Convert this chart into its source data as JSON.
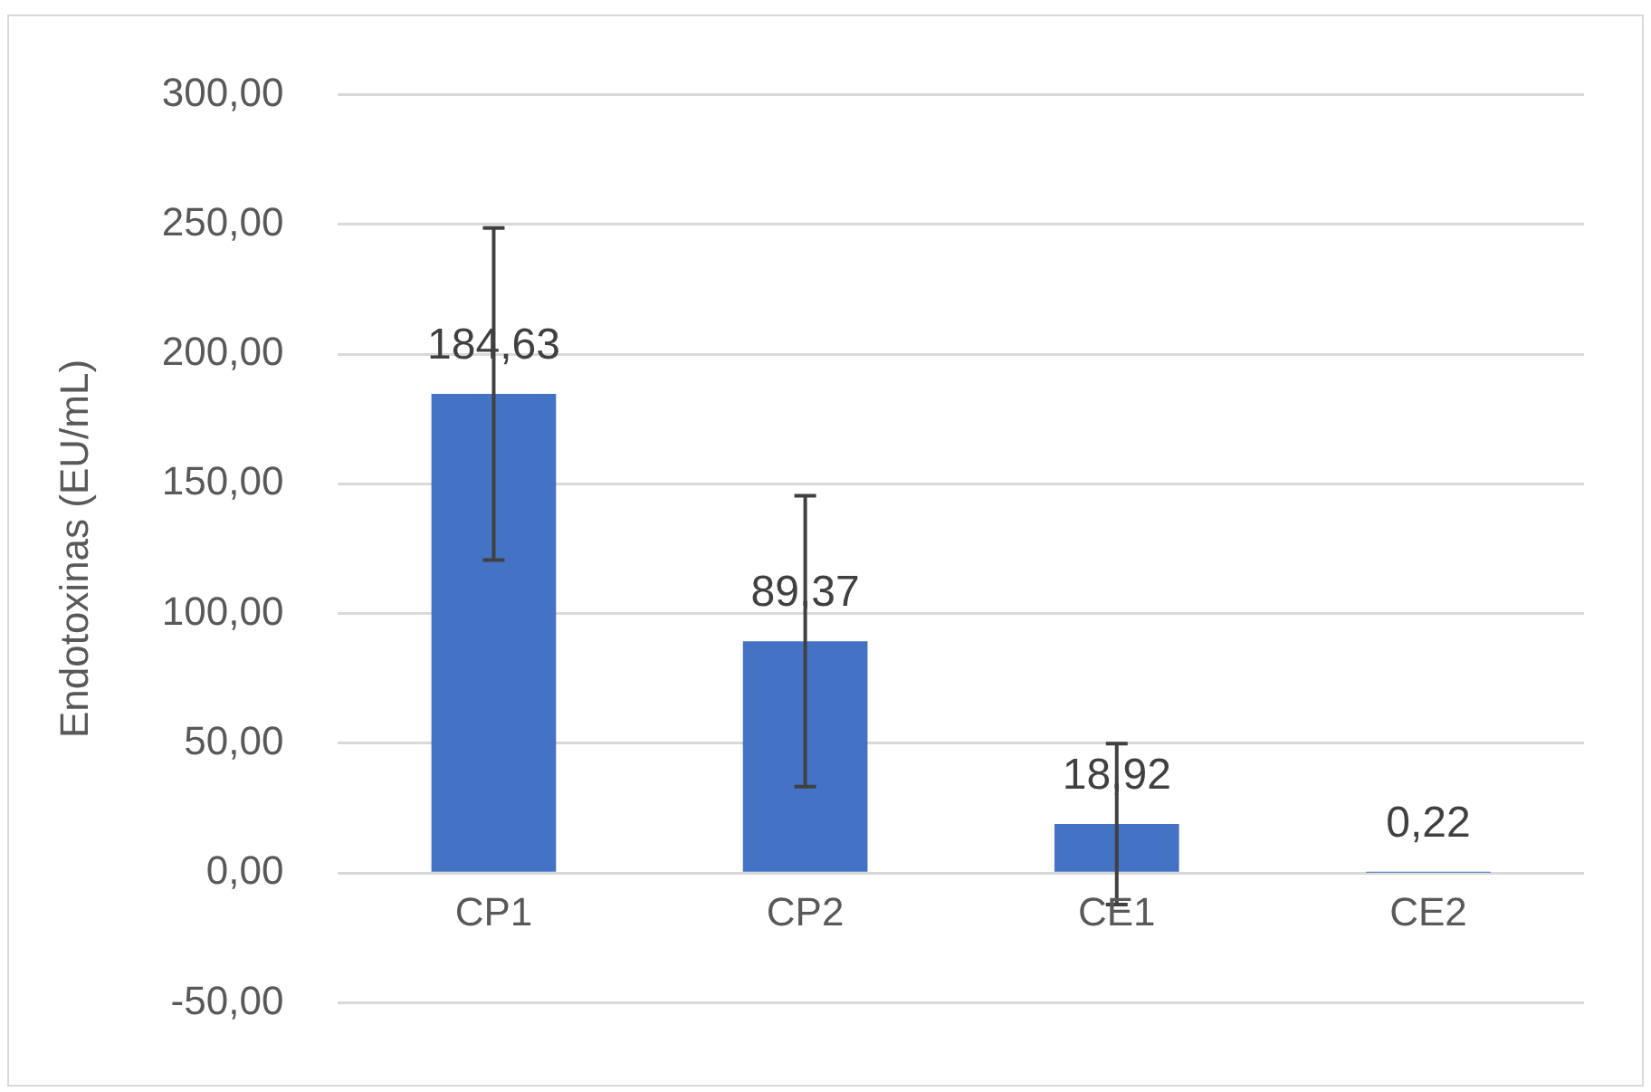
{
  "chart_data": {
    "type": "bar",
    "ylabel": "Endotoxinas (EU/mL)",
    "categories": [
      "CP1",
      "CP2",
      "CE1",
      "CE2"
    ],
    "values": [
      184.63,
      89.37,
      18.92,
      0.22
    ],
    "value_labels": [
      "184,63",
      "89,37",
      "18,92",
      "0,22"
    ],
    "errors": [
      64,
      56,
      31,
      null
    ],
    "color": "#4472c4",
    "ylim": [
      -50,
      300
    ],
    "yticks": [
      {
        "value": -50,
        "label": "-50,00"
      },
      {
        "value": 0,
        "label": "0,00"
      },
      {
        "value": 50,
        "label": "50,00"
      },
      {
        "value": 100,
        "label": "100,00"
      },
      {
        "value": 150,
        "label": "150,00"
      },
      {
        "value": 200,
        "label": "200,00"
      },
      {
        "value": 250,
        "label": "250,00"
      },
      {
        "value": 300,
        "label": "300,00"
      }
    ],
    "grid": "y",
    "legend": false
  }
}
